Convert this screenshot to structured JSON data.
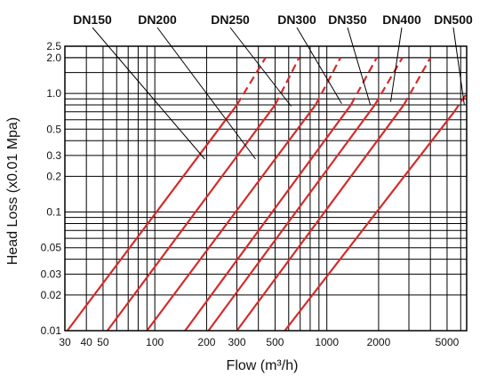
{
  "chart_data": {
    "type": "line",
    "xlabel": "Flow (m³/h)",
    "ylabel": "Head Loss (x0.01 Mpa)",
    "xscale": "log",
    "yscale": "log",
    "xlim": [
      30,
      6500
    ],
    "ylim": [
      0.01,
      2.5
    ],
    "grid": true,
    "x_ticks": [
      "30",
      "40",
      "50",
      "100",
      "200",
      "300",
      "500",
      "1000",
      "2000",
      "5000"
    ],
    "x_tick_values": [
      30,
      40,
      50,
      100,
      200,
      300,
      500,
      1000,
      2000,
      5000
    ],
    "y_ticks": [
      "0.01",
      "0.02",
      "0.03",
      "0.05",
      "0.1",
      "0.2",
      "0.3",
      "0.5",
      "1.0",
      "2.0",
      "2.5"
    ],
    "y_tick_values": [
      0.01,
      0.02,
      0.03,
      0.05,
      0.1,
      0.2,
      0.3,
      0.5,
      1.0,
      2.0,
      2.5
    ],
    "line_color": "#d42b2b",
    "series": [
      {
        "name": "DN150",
        "points": [
          [
            31,
            0.01
          ],
          [
            300,
            0.8
          ]
        ],
        "dashed_points": [
          [
            300,
            0.8
          ],
          [
            440,
            2.0
          ]
        ],
        "label_anchor": [
          195,
          0.28
        ]
      },
      {
        "name": "DN200",
        "points": [
          [
            53,
            0.01
          ],
          [
            500,
            0.8
          ]
        ],
        "dashed_points": [
          [
            500,
            0.8
          ],
          [
            690,
            2.0
          ]
        ],
        "label_anchor": [
          385,
          0.28
        ]
      },
      {
        "name": "DN250",
        "points": [
          [
            90,
            0.01
          ],
          [
            860,
            0.8
          ]
        ],
        "dashed_points": [
          [
            860,
            0.8
          ],
          [
            1200,
            2.0
          ]
        ],
        "label_anchor": [
          620,
          0.78
        ]
      },
      {
        "name": "DN300",
        "points": [
          [
            150,
            0.01
          ],
          [
            1380,
            0.8
          ]
        ],
        "dashed_points": [
          [
            1380,
            0.8
          ],
          [
            1950,
            2.0
          ]
        ],
        "label_anchor": [
          1220,
          0.82
        ]
      },
      {
        "name": "DN350",
        "points": [
          [
            205,
            0.01
          ],
          [
            1900,
            0.8
          ]
        ],
        "dashed_points": [
          [
            1900,
            0.8
          ],
          [
            2750,
            2.0
          ]
        ],
        "label_anchor": [
          1790,
          0.8
        ]
      },
      {
        "name": "DN400",
        "points": [
          [
            300,
            0.01
          ],
          [
            2800,
            0.8
          ]
        ],
        "dashed_points": [
          [
            2800,
            0.8
          ],
          [
            4000,
            2.0
          ]
        ],
        "label_anchor": [
          2350,
          0.85
        ]
      },
      {
        "name": "DN500",
        "points": [
          [
            570,
            0.01
          ],
          [
            5500,
            0.7
          ]
        ],
        "dashed_points": [
          [
            5500,
            0.7
          ],
          [
            6500,
            1.0
          ]
        ],
        "label_anchor": [
          6300,
          0.8
        ]
      }
    ]
  }
}
